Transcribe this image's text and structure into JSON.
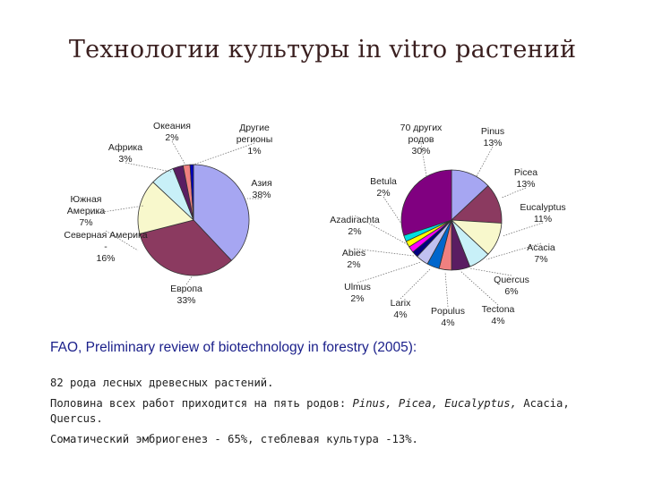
{
  "title": "Технологии культуры in vitro растений",
  "chart_data": [
    {
      "type": "pie",
      "slices": [
        {
          "label": "Азия",
          "pct_label": "38%",
          "value": 38,
          "color": "#a6a6f2"
        },
        {
          "label": "Европа",
          "pct_label": "33%",
          "value": 33,
          "color": "#8b3a60"
        },
        {
          "label": "Северная Америка -",
          "pct_label": "16%",
          "value": 16,
          "color": "#f8f8cc"
        },
        {
          "label": "Южная Америка",
          "pct_label": "7%",
          "value": 7,
          "color": "#c8f0f8"
        },
        {
          "label": "Африка",
          "pct_label": "3%",
          "value": 3,
          "color": "#5a1d62"
        },
        {
          "label": "Океания",
          "pct_label": "2%",
          "value": 2,
          "color": "#f08080"
        },
        {
          "label": "Другие регионы",
          "pct_label": "1%",
          "value": 1,
          "color": "#0000c0"
        }
      ]
    },
    {
      "type": "pie",
      "slices": [
        {
          "label": "Pinus",
          "pct_label": "13%",
          "value": 13,
          "color": "#a6a6f2"
        },
        {
          "label": "Picea",
          "pct_label": "13%",
          "value": 13,
          "color": "#8b3a60"
        },
        {
          "label": "Eucalyptus",
          "pct_label": "11%",
          "value": 11,
          "color": "#f8f8cc"
        },
        {
          "label": "Acacia",
          "pct_label": "7%",
          "value": 7,
          "color": "#c8f0f8"
        },
        {
          "label": "Quercus",
          "pct_label": "6%",
          "value": 6,
          "color": "#5a1d62"
        },
        {
          "label": "Tectona",
          "pct_label": "4%",
          "value": 4,
          "color": "#f08080"
        },
        {
          "label": "Populus",
          "pct_label": "4%",
          "value": 4,
          "color": "#0066cc"
        },
        {
          "label": "Larix",
          "pct_label": "4%",
          "value": 4,
          "color": "#c0c0f0"
        },
        {
          "label": "Ulmus",
          "pct_label": "2%",
          "value": 2,
          "color": "#000080"
        },
        {
          "label": "Abies",
          "pct_label": "2%",
          "value": 2,
          "color": "#ff00ff"
        },
        {
          "label": "Azadirachta",
          "pct_label": "2%",
          "value": 2,
          "color": "#ffff00"
        },
        {
          "label": "Betula",
          "pct_label": "2%",
          "value": 2,
          "color": "#00e0e0"
        },
        {
          "label": "70 других родов",
          "pct_label": "30%",
          "value": 30,
          "color": "#800080"
        }
      ]
    }
  ],
  "source": "FAO, Preliminary review of biotechnology in forestry (2005):",
  "notes": {
    "line1": "82 рода лесных древесных растений.",
    "line2_prefix": "Половина всех работ приходится на пять родов: ",
    "line2_italic": "Pinus, Picea, Eucalyptus,",
    "line2_suffix": " Acacia, Quercus.",
    "line3": "Соматический эмбриогенез - 65%, стеблевая культура -13%."
  }
}
